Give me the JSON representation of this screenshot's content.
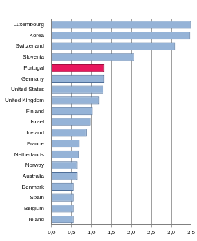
{
  "chart_data": {
    "type": "bar",
    "orientation": "horizontal",
    "categories": [
      "Luxembourg",
      "Korea",
      "Switzerland",
      "Slovenia",
      "Portugal",
      "Germany",
      "United States",
      "United Kingdom",
      "Finland",
      "Israel",
      "Iceland",
      "France",
      "Netherlands",
      "Norway",
      "Australia",
      "Denmark",
      "Spain",
      "Belgium",
      "Ireland"
    ],
    "values": [
      3.5,
      3.48,
      3.1,
      2.07,
      1.32,
      1.32,
      1.3,
      1.2,
      1.03,
      0.98,
      0.88,
      0.7,
      0.68,
      0.65,
      0.65,
      0.55,
      0.55,
      0.55,
      0.55
    ],
    "colors": [
      "#95b3d7",
      "#95b3d7",
      "#95b3d7",
      "#95b3d7",
      "#e8175d",
      "#95b3d7",
      "#95b3d7",
      "#95b3d7",
      "#95b3d7",
      "#95b3d7",
      "#95b3d7",
      "#95b3d7",
      "#95b3d7",
      "#95b3d7",
      "#95b3d7",
      "#95b3d7",
      "#95b3d7",
      "#95b3d7",
      "#95b3d7"
    ],
    "xlim": [
      0,
      3.5
    ],
    "xticks": [
      {
        "value": 0,
        "label": "0,0"
      },
      {
        "value": 0.5,
        "label": "0,5"
      },
      {
        "value": 1,
        "label": "1,0"
      },
      {
        "value": 1.5,
        "label": "1,5"
      },
      {
        "value": 2,
        "label": "2,0"
      },
      {
        "value": 2.5,
        "label": "2,5"
      },
      {
        "value": 3,
        "label": "3,0"
      },
      {
        "value": 3.5,
        "label": "3,5"
      }
    ],
    "grid": true
  }
}
